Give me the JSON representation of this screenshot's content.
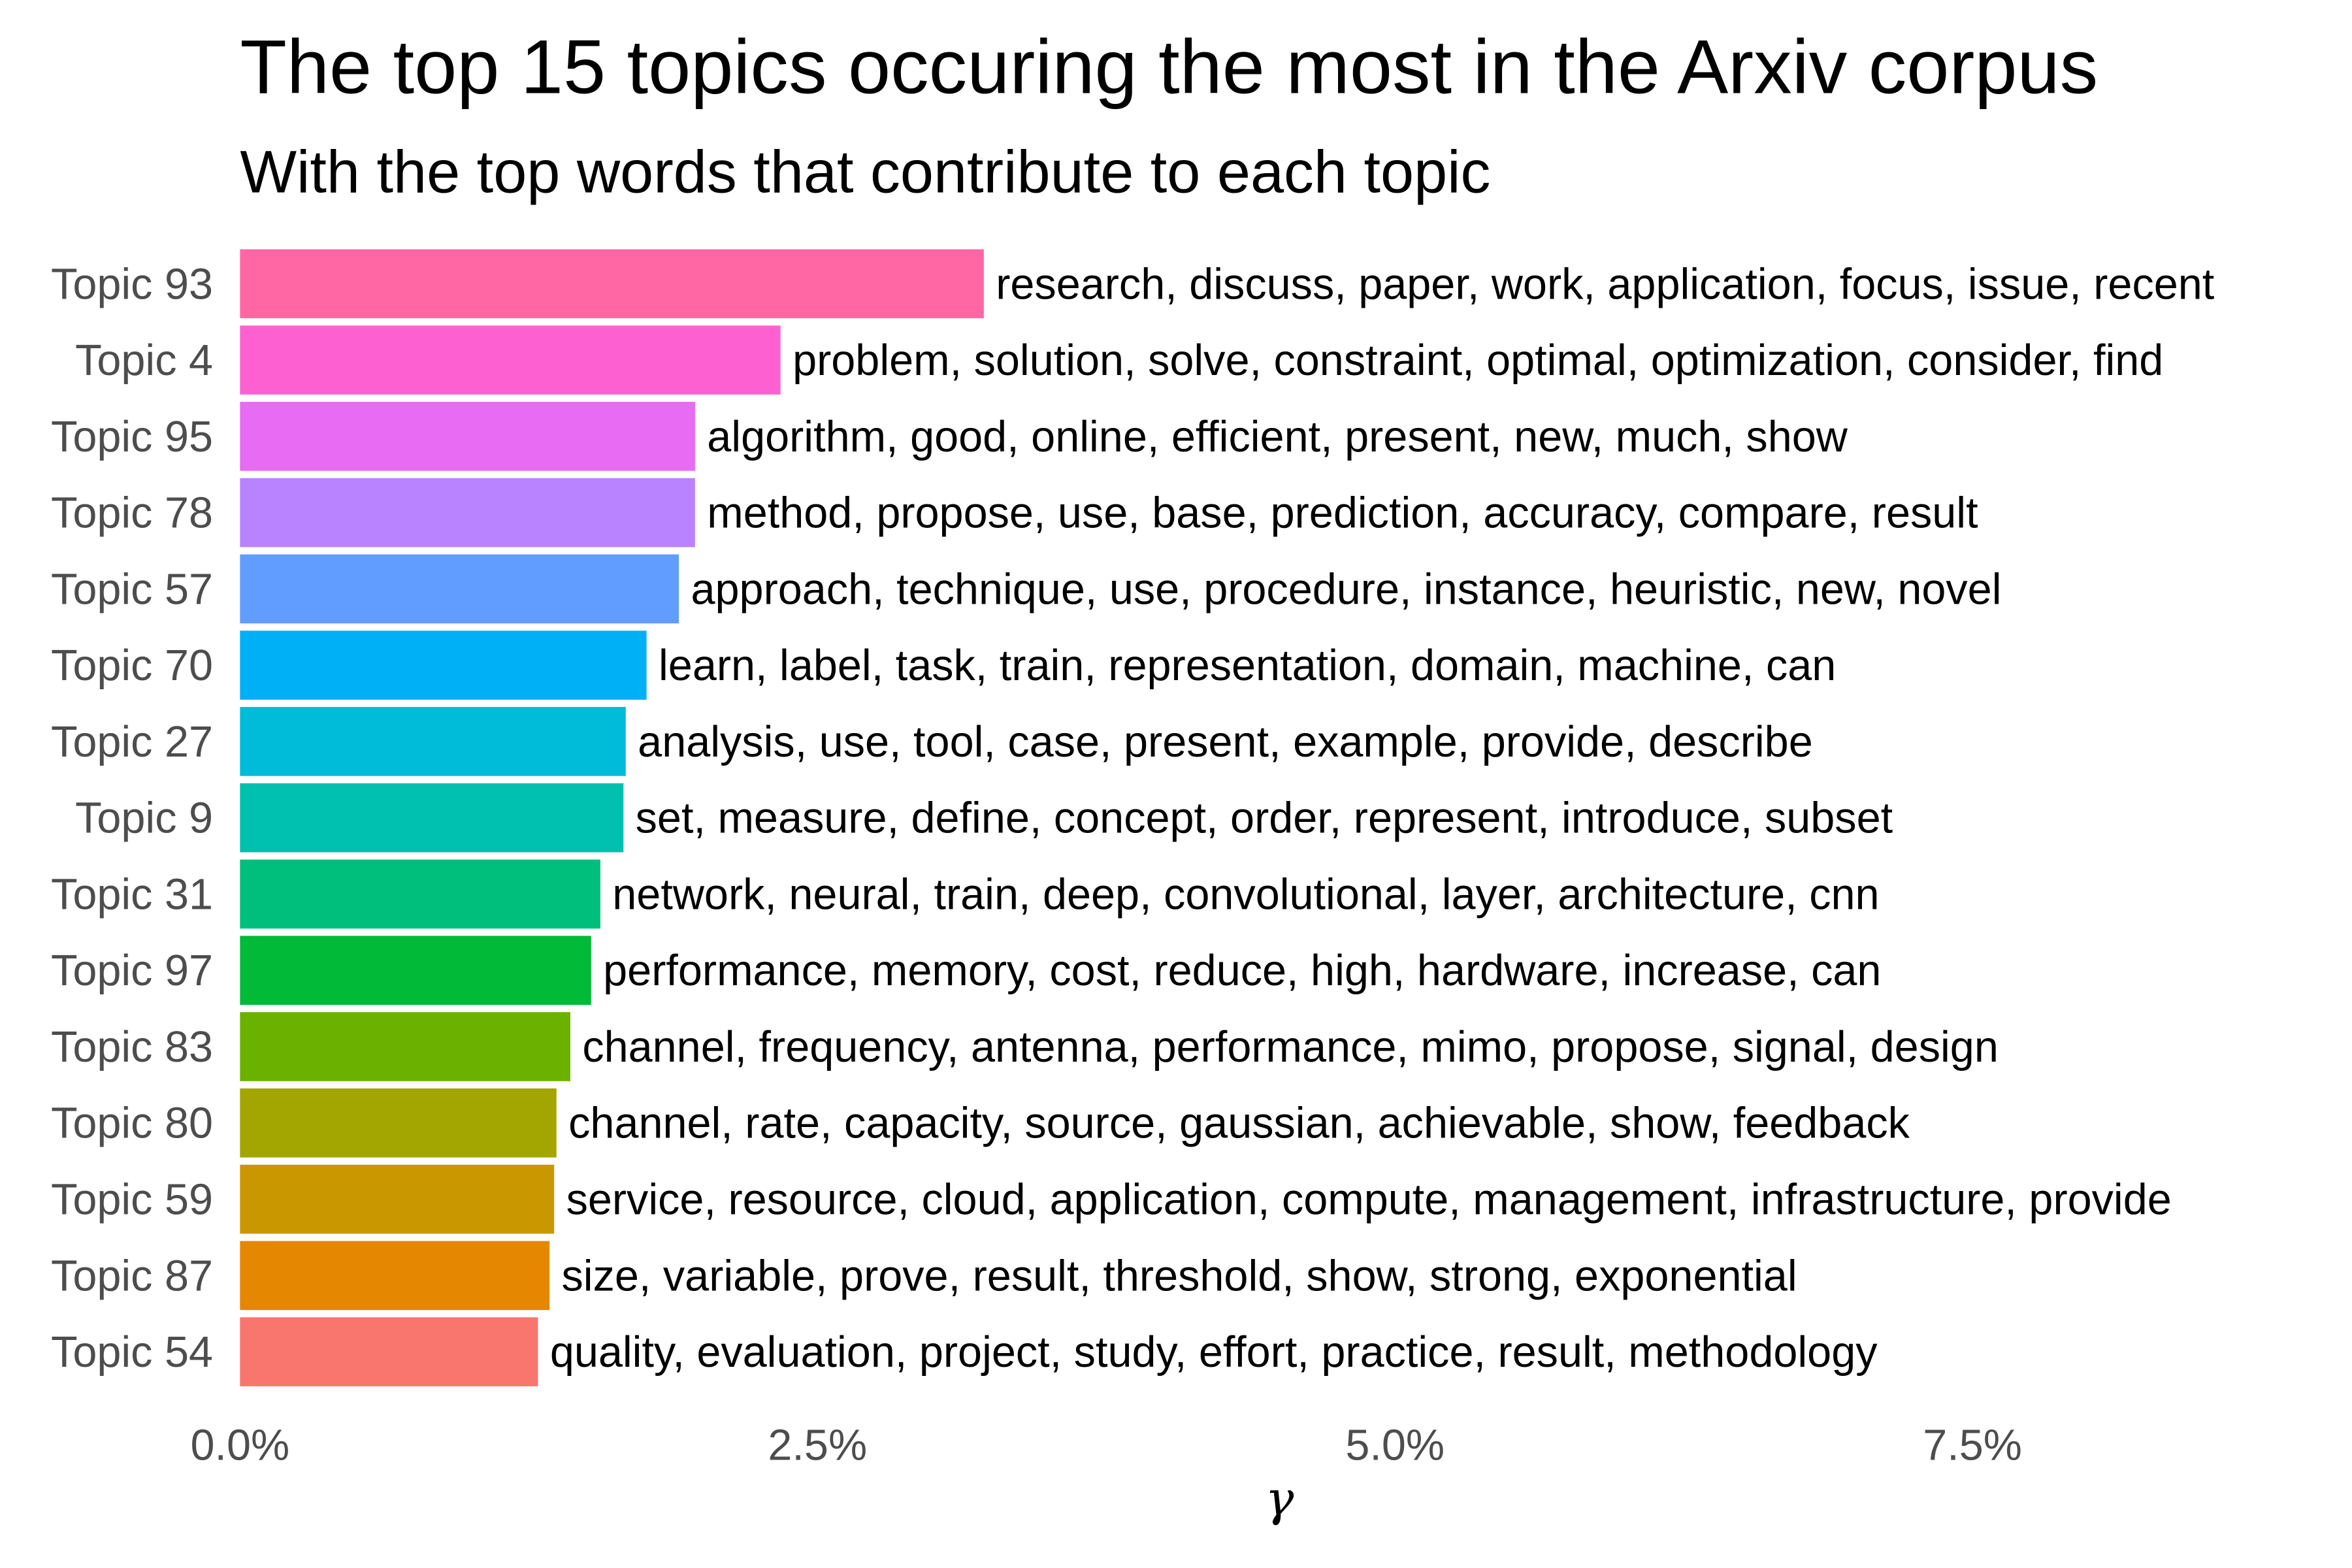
{
  "chart_data": {
    "type": "bar",
    "orientation": "horizontal",
    "title": "The top 15 topics occuring the most in the Arxiv corpus",
    "subtitle": "With the top words that contribute to each topic",
    "xlabel": "γ",
    "ylabel": "",
    "xlim": [
      0,
      0.09
    ],
    "xticks": [
      0,
      0.025,
      0.05,
      0.075
    ],
    "xtick_labels": [
      "0.0%",
      "2.5%",
      "5.0%",
      "7.5%"
    ],
    "grid": false,
    "legend": "none",
    "categories": [
      "Topic 93",
      "Topic 4",
      "Topic 95",
      "Topic 78",
      "Topic 57",
      "Topic 70",
      "Topic 27",
      "Topic 9",
      "Topic 31",
      "Topic 97",
      "Topic 83",
      "Topic 80",
      "Topic 59",
      "Topic 87",
      "Topic 54"
    ],
    "values": [
      0.0322,
      0.0234,
      0.0197,
      0.0197,
      0.019,
      0.0176,
      0.0167,
      0.0166,
      0.0156,
      0.0152,
      0.0143,
      0.0137,
      0.0136,
      0.0134,
      0.0129
    ],
    "labels": [
      "research, discuss, paper, work, application, focus, issue, recent",
      "problem, solution, solve, constraint, optimal, optimization, consider, find",
      "algorithm, good, online, efficient, present, new, much, show",
      "method, propose, use, base, prediction, accuracy, compare, result",
      "approach, technique, use, procedure, instance, heuristic, new, novel",
      "learn, label, task, train, representation, domain, machine, can",
      "analysis, use, tool, case, present, example, provide, describe",
      "set, measure, define, concept, order, represent, introduce, subset",
      "network, neural, train, deep, convolutional, layer, architecture, cnn",
      "performance, memory, cost, reduce, high, hardware, increase, can",
      "channel, frequency, antenna, performance, mimo, propose, signal, design",
      "channel, rate, capacity, source, gaussian, achievable, show, feedback",
      "service, resource, cloud, application, compute, management, infrastructure, provide",
      "size, variable, prove, result, threshold, show, strong, exponential",
      "quality, evaluation, project, study, effort, practice, result, methodology"
    ],
    "colors": [
      "#FF67A4",
      "#FD61D1",
      "#E76BF3",
      "#B983FF",
      "#619CFF",
      "#00B0F6",
      "#00BCD8",
      "#00C0AF",
      "#00BF7D",
      "#00BA38",
      "#6BB100",
      "#A3A500",
      "#C99800",
      "#E58700",
      "#F8766D"
    ]
  }
}
